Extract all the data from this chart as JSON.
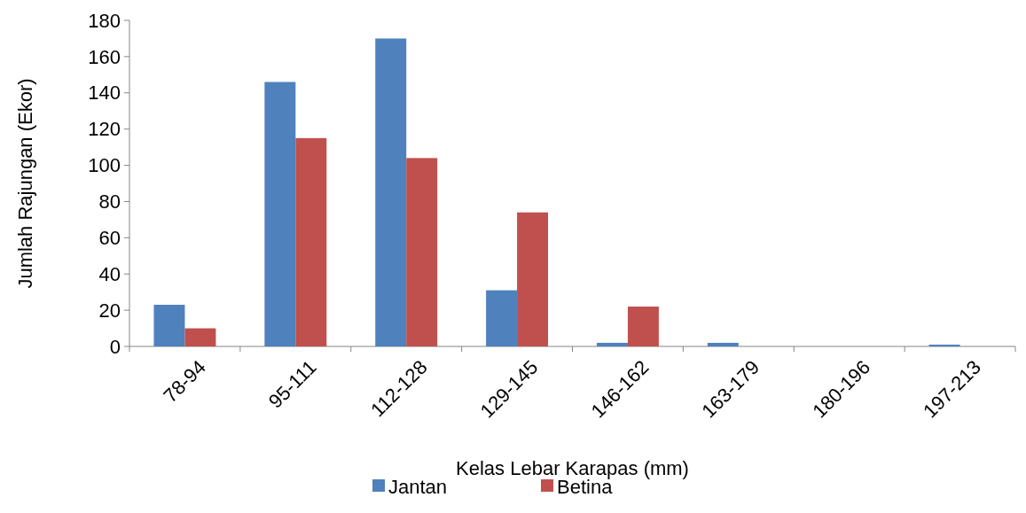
{
  "chart_data": {
    "type": "bar",
    "xlabel": "Kelas Lebar Karapas (mm)",
    "ylabel": "Jumlah Rajungan (Ekor)",
    "categories": [
      "78-94",
      "95-111",
      "112-128",
      "129-145",
      "146-162",
      "163-179",
      "180-196",
      "197-213"
    ],
    "series": [
      {
        "name": "Jantan",
        "color": "#4f81bd",
        "values": [
          23,
          146,
          170,
          31,
          2,
          2,
          0,
          1
        ]
      },
      {
        "name": "Betina",
        "color": "#c0504d",
        "values": [
          10,
          115,
          104,
          74,
          22,
          0,
          0,
          0
        ]
      }
    ],
    "ylim": [
      0,
      180
    ],
    "yticks": [
      0,
      20,
      40,
      60,
      80,
      100,
      120,
      140,
      160,
      180
    ],
    "grid": false,
    "legend": "bottom"
  }
}
